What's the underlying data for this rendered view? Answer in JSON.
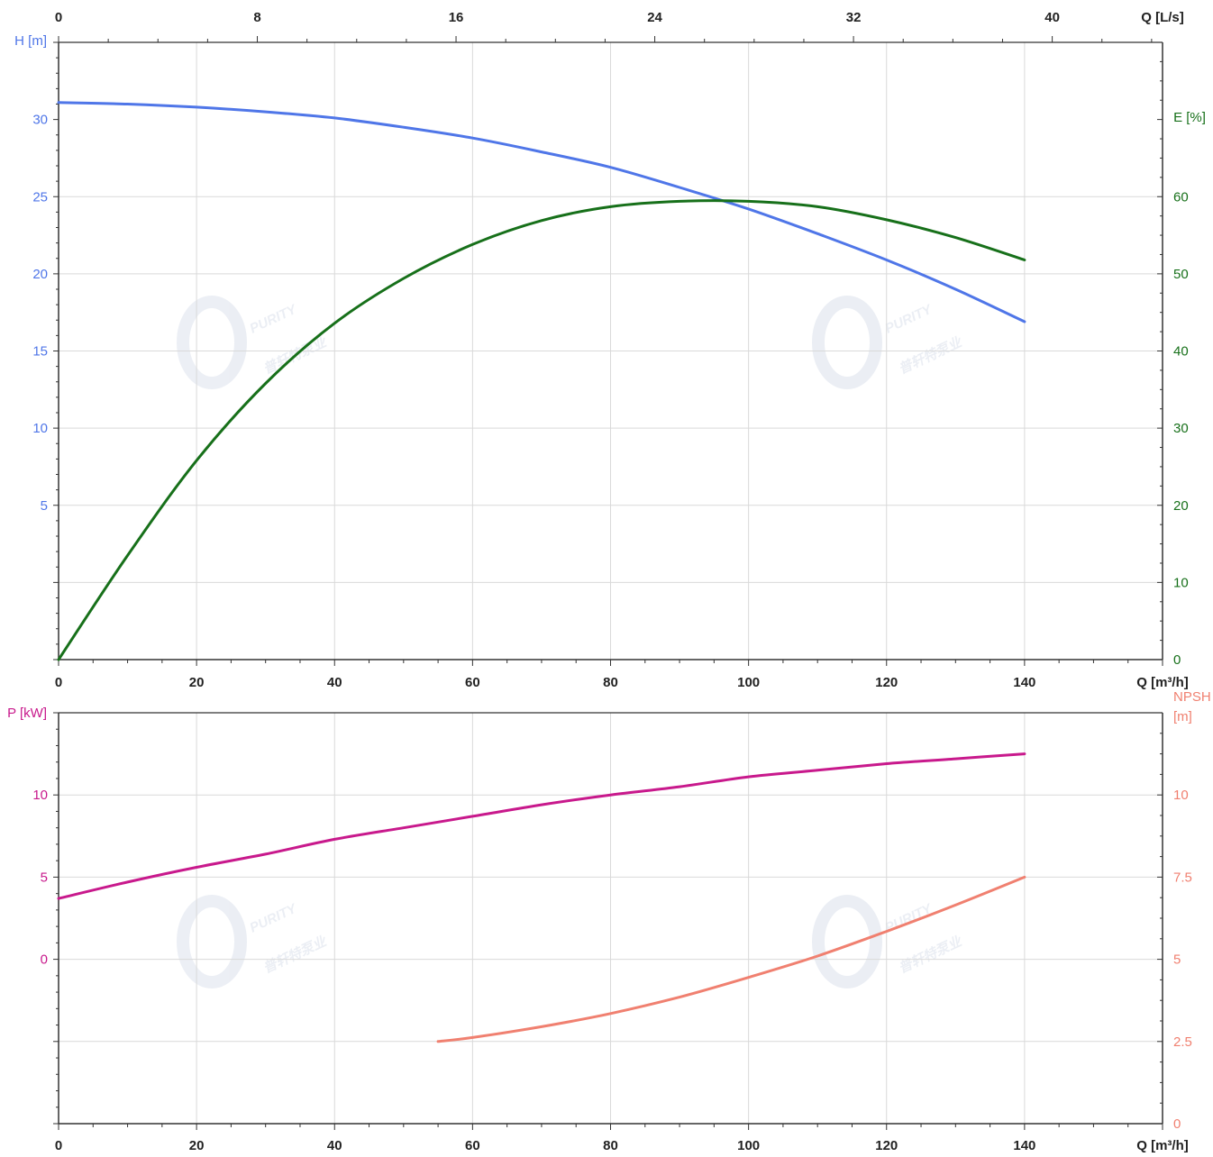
{
  "watermark": {
    "brand": "PURITY",
    "subtitle": "普轩特泵业"
  },
  "colors": {
    "head": "#4f76e8",
    "efficiency": "#17701a",
    "power": "#c8198c",
    "npsh": "#f08070",
    "axis": "#333333",
    "grid": "#d9d9d9"
  },
  "chart_data": [
    {
      "type": "line",
      "panel": "top",
      "x_axis_bottom": {
        "label": "Q [m³/h]",
        "range": [
          0,
          160
        ],
        "ticks": [
          "0",
          "20",
          "40",
          "60",
          "80",
          "100",
          "120",
          "140"
        ]
      },
      "x_axis_top": {
        "label": "Q [L/s]",
        "range": [
          0,
          44.44
        ],
        "ticks": [
          "0",
          "8",
          "16",
          "24",
          "32",
          "40"
        ]
      },
      "y_axis_left": {
        "label": "H [m]",
        "range": [
          -5,
          35
        ],
        "ticks": [
          "5",
          "10",
          "15",
          "20",
          "25",
          "30"
        ]
      },
      "y_axis_right": {
        "label": "E [%]",
        "range": [
          0,
          80
        ],
        "ticks": [
          "0",
          "10",
          "20",
          "30",
          "40",
          "50",
          "60"
        ]
      },
      "grid": true,
      "series": [
        {
          "axis": "left",
          "color_key": "head",
          "x": [
            0,
            10,
            20,
            30,
            40,
            50,
            60,
            70,
            80,
            90,
            100,
            110,
            120,
            130,
            140
          ],
          "y": [
            31.1,
            31.0,
            30.8,
            30.5,
            30.1,
            29.5,
            28.8,
            27.9,
            26.9,
            25.6,
            24.2,
            22.6,
            20.9,
            19.0,
            16.9
          ]
        },
        {
          "axis": "right",
          "color_key": "efficiency",
          "x": [
            0,
            10,
            20,
            30,
            40,
            50,
            60,
            70,
            80,
            90,
            100,
            110,
            120,
            130,
            140
          ],
          "y": [
            0,
            13.5,
            25.8,
            35.8,
            43.6,
            49.4,
            53.8,
            56.9,
            58.7,
            59.4,
            59.4,
            58.7,
            57.0,
            54.7,
            51.8
          ]
        }
      ]
    },
    {
      "type": "line",
      "panel": "bottom",
      "x_axis_bottom": {
        "label": "Q [m³/h]",
        "range": [
          0,
          160
        ],
        "ticks": [
          "0",
          "20",
          "40",
          "60",
          "80",
          "100",
          "120",
          "140"
        ]
      },
      "y_axis_left": {
        "label": "P [kW]",
        "range": [
          -10,
          15
        ],
        "ticks": [
          "0",
          "5",
          "10"
        ]
      },
      "y_axis_right": {
        "label": "NPSH\n[m]",
        "range": [
          0,
          12.5
        ],
        "ticks": [
          "0",
          "2.5",
          "5",
          "7.5",
          "10"
        ]
      },
      "grid": true,
      "series": [
        {
          "axis": "left",
          "color_key": "power",
          "x": [
            0,
            10,
            20,
            30,
            40,
            50,
            60,
            70,
            80,
            90,
            100,
            110,
            120,
            130,
            140
          ],
          "y": [
            3.7,
            4.7,
            5.6,
            6.4,
            7.3,
            8.0,
            8.7,
            9.4,
            10.0,
            10.5,
            11.1,
            11.5,
            11.9,
            12.2,
            12.5
          ]
        },
        {
          "axis": "right",
          "color_key": "npsh",
          "x": [
            55,
            60,
            70,
            80,
            90,
            100,
            110,
            120,
            130,
            140
          ],
          "y": [
            2.5,
            2.62,
            2.95,
            3.35,
            3.85,
            4.45,
            5.1,
            5.85,
            6.65,
            7.5
          ]
        }
      ]
    }
  ]
}
